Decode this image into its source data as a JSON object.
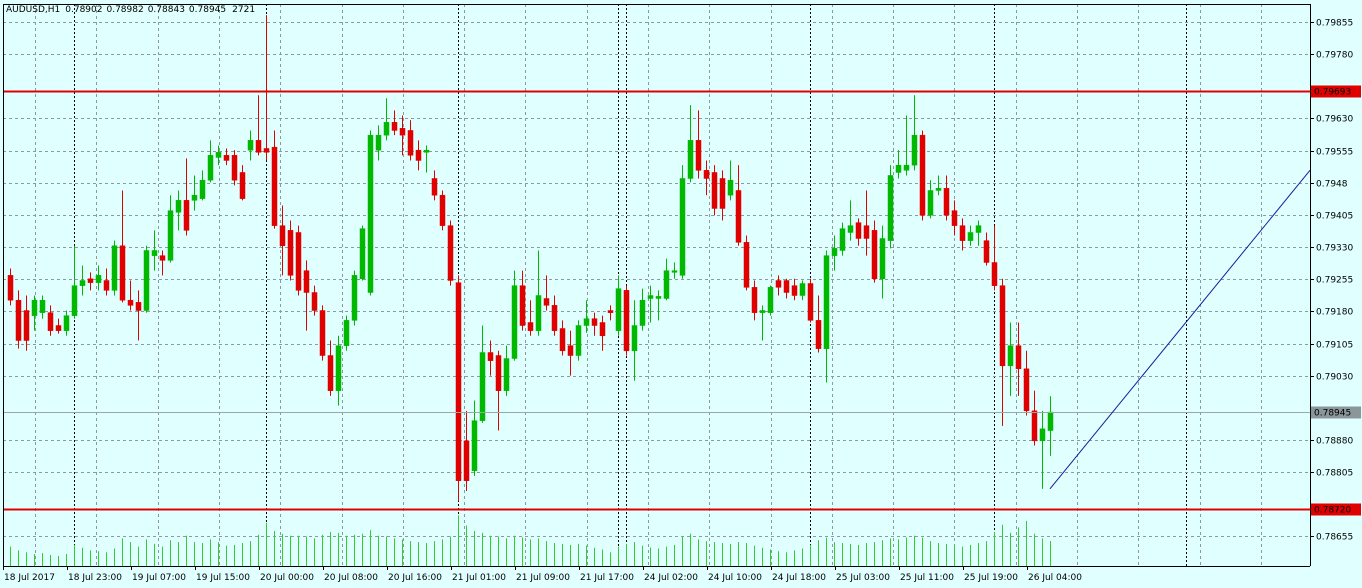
{
  "chart_data": {
    "type": "candlestick",
    "title": "AUDUSD,H1",
    "categories": [
      "18 Jul 2017",
      null,
      null,
      null,
      null,
      null,
      null,
      null,
      "18 Jul 23:00",
      null,
      null,
      null,
      null,
      null,
      null,
      null,
      "19 Jul 07:00",
      null,
      null,
      null,
      null,
      null,
      null,
      null,
      "19 Jul 15:00",
      null,
      null,
      null,
      null,
      null,
      null,
      null,
      "20 Jul 00:00",
      null,
      null,
      null,
      null,
      null,
      null,
      null,
      "20 Jul 08:00",
      null,
      null,
      null,
      null,
      null,
      null,
      null,
      "20 Jul 16:00",
      null,
      null,
      null,
      null,
      null,
      null,
      null,
      "21 Jul 01:00",
      null,
      null,
      null,
      null,
      null,
      null,
      null,
      "21 Jul 09:00",
      null,
      null,
      null,
      null,
      null,
      null,
      null,
      "21 Jul 17:00",
      null,
      null,
      null,
      null,
      null,
      null,
      null,
      "24 Jul 02:00",
      null,
      null,
      null,
      null,
      null,
      null,
      null,
      "24 Jul 10:00",
      null,
      null,
      null,
      null,
      null,
      null,
      null,
      "24 Jul 18:00",
      null,
      null,
      null,
      null,
      null,
      null,
      null,
      "25 Jul 03:00",
      null,
      null,
      null,
      null,
      null,
      null,
      null,
      "25 Jul 11:00",
      null,
      null,
      null,
      null,
      null,
      null,
      null,
      "25 Jul 19:00",
      null,
      null,
      null,
      null,
      null,
      null,
      null,
      "26 Jul 04:00",
      null,
      null
    ],
    "open": [
      0.79264,
      0.79206,
      0.79182,
      0.7917,
      0.79177,
      0.79177,
      0.79147,
      0.79135,
      0.7917,
      0.7924,
      0.79256,
      0.79247,
      0.79252,
      0.79229,
      0.79333,
      0.79206,
      0.79201,
      0.79182,
      0.7931,
      0.7931,
      0.79299,
      0.79411,
      0.79439,
      0.79439,
      0.79443,
      0.79486,
      0.79539,
      0.79544,
      0.79544,
      0.79504,
      0.79556,
      0.79579,
      0.7956,
      0.79563,
      0.7938,
      0.79369,
      0.79364,
      0.79275,
      0.79224,
      0.79182,
      0.79077,
      0.78995,
      0.791,
      0.79159,
      0.79256,
      0.79224,
      0.79556,
      0.79591,
      0.79621,
      0.79607,
      0.79602,
      0.79556,
      0.79551,
      0.7949,
      0.79451,
      0.7938,
      0.79247,
      0.78878,
      0.78808,
      0.78925,
      0.79084,
      0.79077,
      0.78995,
      0.7907,
      0.7924,
      0.79154,
      0.79135,
      0.7921,
      0.79194,
      0.7914,
      0.791,
      0.79077,
      0.79147,
      0.79163,
      0.79154,
      0.79182,
      0.79135,
      0.79229,
      0.79088,
      0.79147,
      0.7921,
      0.7921,
      0.7921,
      0.79271,
      0.79264,
      0.7949,
      0.79579,
      0.79509,
      0.79504,
      0.7949,
      0.79451,
      0.79462,
      0.79341,
      0.79236,
      0.79177,
      0.79177,
      0.79252,
      0.79252,
      0.7924,
      0.79217,
      0.79245,
      0.79159,
      0.79093,
      0.7931,
      0.79322,
      0.79364,
      0.79387,
      0.7938,
      0.79369,
      0.79256,
      0.79345,
      0.79504,
      0.79509,
      0.79521,
      0.79591,
      0.79404,
      0.79462,
      0.79467,
      0.79415,
      0.7938,
      0.79345,
      0.79364,
      0.79345,
      0.79294,
      0.7924,
      0.79053,
      0.791,
      0.79046,
      0.78948,
      0.78878,
      0.78902
    ],
    "high": [
      0.7928,
      0.79229,
      0.79217,
      0.79217,
      0.79217,
      0.79194,
      0.79163,
      0.79182,
      0.79333,
      0.79287,
      0.79271,
      0.79287,
      0.7928,
      0.79345,
      0.79462,
      0.79252,
      0.79229,
      0.79333,
      0.79369,
      0.79322,
      0.79451,
      0.79462,
      0.79537,
      0.79497,
      0.79509,
      0.79579,
      0.79567,
      0.7956,
      0.79556,
      0.79521,
      0.79602,
      0.79684,
      0.79871,
      0.79602,
      0.79427,
      0.79392,
      0.7938,
      0.79299,
      0.7924,
      0.79194,
      0.79112,
      0.79123,
      0.7917,
      0.79275,
      0.7938,
      0.79602,
      0.79614,
      0.79677,
      0.79649,
      0.79637,
      0.79626,
      0.79579,
      0.79567,
      0.79509,
      0.79462,
      0.79392,
      0.79264,
      0.78948,
      0.78972,
      0.79147,
      0.79112,
      0.79088,
      0.791,
      0.79275,
      0.79275,
      0.79206,
      0.79322,
      0.79264,
      0.79217,
      0.79159,
      0.79135,
      0.79159,
      0.79206,
      0.79177,
      0.7917,
      0.79194,
      0.79264,
      0.7924,
      0.79206,
      0.79233,
      0.7924,
      0.79229,
      0.79303,
      0.79294,
      0.79521,
      0.79661,
      0.79649,
      0.79532,
      0.79521,
      0.79509,
      0.79532,
      0.79521,
      0.79357,
      0.79252,
      0.79194,
      0.7924,
      0.79264,
      0.79256,
      0.79256,
      0.79252,
      0.79256,
      0.79217,
      0.79322,
      0.79357,
      0.79387,
      0.79439,
      0.79397,
      0.79462,
      0.79392,
      0.7938,
      0.79521,
      0.79556,
      0.79637,
      0.79684,
      0.79602,
      0.79486,
      0.79497,
      0.79497,
      0.79439,
      0.79397,
      0.7938,
      0.79392,
      0.79364,
      0.7938,
      0.79256,
      0.79154,
      0.79154,
      0.79088,
      0.78995,
      0.78948,
      0.78982
    ],
    "low": [
      0.79194,
      0.79093,
      0.79088,
      0.79135,
      0.79163,
      0.79123,
      0.79128,
      0.79123,
      0.79163,
      0.79217,
      0.79229,
      0.79229,
      0.79217,
      0.79217,
      0.79201,
      0.79182,
      0.79112,
      0.79177,
      0.79275,
      0.79264,
      0.79294,
      0.79369,
      0.79357,
      0.79415,
      0.79439,
      0.79481,
      0.79521,
      0.79521,
      0.79474,
      0.79439,
      0.79532,
      0.79544,
      0.79532,
      0.79373,
      0.79264,
      0.79252,
      0.79217,
      0.79135,
      0.7917,
      0.79065,
      0.78983,
      0.7896,
      0.79088,
      0.79147,
      0.79252,
      0.79217,
      0.79532,
      0.79579,
      0.79591,
      0.79544,
      0.79532,
      0.79509,
      0.79504,
      0.79439,
      0.79369,
      0.7924,
      0.78738,
      0.78761,
      0.78796,
      0.7892,
      0.7903,
      0.78902,
      0.78983,
      0.79065,
      0.79135,
      0.79123,
      0.79123,
      0.79182,
      0.79123,
      0.79077,
      0.7903,
      0.79065,
      0.7913,
      0.79123,
      0.79088,
      0.79159,
      0.79123,
      0.79077,
      0.79018,
      0.79135,
      0.79154,
      0.79159,
      0.79206,
      0.79256,
      0.79256,
      0.79481,
      0.7949,
      0.79451,
      0.79404,
      0.79392,
      0.79439,
      0.79333,
      0.79229,
      0.79159,
      0.79112,
      0.7917,
      0.79217,
      0.7921,
      0.79206,
      0.79206,
      0.79154,
      0.79084,
      0.79014,
      0.79275,
      0.7931,
      0.79345,
      0.79333,
      0.7931,
      0.79247,
      0.7921,
      0.79327,
      0.7949,
      0.79497,
      0.79509,
      0.79392,
      0.79397,
      0.79451,
      0.79392,
      0.79357,
      0.79322,
      0.79333,
      0.79333,
      0.79287,
      0.79229,
      0.78913,
      0.78983,
      0.78983,
      0.78937,
      0.78867,
      0.78766,
      0.78843
    ],
    "close": [
      0.79206,
      0.79112,
      0.79112,
      0.79206,
      0.79206,
      0.79135,
      0.79135,
      0.7917,
      0.7924,
      0.79252,
      0.79247,
      0.79264,
      0.79229,
      0.79333,
      0.79206,
      0.79194,
      0.79182,
      0.79322,
      0.79322,
      0.79299,
      0.79415,
      0.79439,
      0.79369,
      0.79451,
      0.79486,
      0.79544,
      0.79551,
      0.79532,
      0.79486,
      0.79443,
      0.79579,
      0.79551,
      0.79551,
      0.7938,
      0.79333,
      0.79264,
      0.79229,
      0.79224,
      0.79182,
      0.79077,
      0.78995,
      0.791,
      0.79159,
      0.79264,
      0.79373,
      0.79591,
      0.79591,
      0.79621,
      0.79602,
      0.79591,
      0.79544,
      0.79532,
      0.79556,
      0.79451,
      0.7938,
      0.79252,
      0.78785,
      0.78785,
      0.78925,
      0.79084,
      0.79065,
      0.78995,
      0.7907,
      0.7924,
      0.79147,
      0.79135,
      0.79217,
      0.79194,
      0.79135,
      0.79088,
      0.79077,
      0.79147,
      0.79163,
      0.79147,
      0.79123,
      0.79177,
      0.79233,
      0.79088,
      0.79147,
      0.79206,
      0.79217,
      0.79215,
      0.79275,
      0.79275,
      0.7949,
      0.79579,
      0.79509,
      0.7949,
      0.7942,
      0.7942,
      0.79486,
      0.79341,
      0.79236,
      0.79177,
      0.79182,
      0.79236,
      0.79236,
      0.79224,
      0.79217,
      0.79245,
      0.79159,
      0.79093,
      0.7931,
      0.79327,
      0.79373,
      0.7938,
      0.7935,
      0.7935,
      0.79256,
      0.7935,
      0.79497,
      0.79521,
      0.79521,
      0.79591,
      0.79404,
      0.79462,
      0.79467,
      0.79404,
      0.7938,
      0.79345,
      0.79364,
      0.7938,
      0.79294,
      0.7924,
      0.79053,
      0.791,
      0.79046,
      0.78948,
      0.78878,
      0.78906,
      0.78945
    ],
    "volume": [
      2100,
      1700,
      1500,
      1300,
      1400,
      1200,
      1100,
      1300,
      2300,
      2000,
      1700,
      1600,
      1500,
      1900,
      3000,
      2600,
      2100,
      2900,
      2400,
      2100,
      2800,
      2600,
      3300,
      2600,
      2500,
      2900,
      2600,
      2200,
      2300,
      2500,
      2700,
      3400,
      4700,
      3800,
      3500,
      3300,
      3300,
      3200,
      3000,
      3400,
      3700,
      3600,
      3300,
      3400,
      3500,
      3900,
      3300,
      3200,
      3000,
      2900,
      2700,
      2600,
      2500,
      2700,
      2900,
      3200,
      5500,
      4400,
      3800,
      3600,
      3300,
      3200,
      3000,
      3300,
      3100,
      2900,
      3000,
      2700,
      2500,
      2400,
      2300,
      2400,
      2200,
      2000,
      1800,
      1500,
      2100,
      2400,
      2600,
      2200,
      2000,
      1900,
      2100,
      2300,
      3200,
      3500,
      2900,
      2700,
      2600,
      2500,
      2400,
      2600,
      2500,
      2200,
      2000,
      1800,
      1600,
      1500,
      1700,
      1900,
      2300,
      2800,
      3100,
      2600,
      2500,
      2400,
      2300,
      2500,
      2600,
      2800,
      3000,
      2900,
      3100,
      3300,
      3100,
      2700,
      2500,
      2400,
      2200,
      2100,
      2300,
      2500,
      2700,
      3700,
      4500,
      3600,
      4200,
      4900,
      3500,
      3000,
      2721
    ],
    "colors": {
      "up": "#00b800",
      "down": "#e00000",
      "volume": "#33cc33"
    },
    "ylim": [
      0.78586,
      0.79897
    ],
    "yticks": [
      0.79855,
      {
        "value": 0.7978,
        "label": "0.79780"
      },
      {
        "value": 0.7963,
        "label": "0.79630"
      },
      0.79555,
      0.7948,
      0.79405,
      {
        "value": 0.7933,
        "label": "0.79330"
      },
      0.79255,
      {
        "value": 0.7918,
        "label": "0.79180"
      },
      0.79105,
      {
        "value": 0.7903,
        "label": "0.79030"
      },
      {
        "value": 0.7888,
        "label": "0.78880"
      },
      0.78805,
      0.78655
    ],
    "grid": true,
    "levels": [
      {
        "value": 0.79693,
        "color": "#e00000"
      },
      {
        "value": 0.7872,
        "label": "0.78720",
        "color": "#e00000"
      }
    ],
    "trendline": {
      "x": [
        130,
        162.5
      ],
      "values": [
        0.78766,
        0.79509
      ],
      "color": "#1a1aa0"
    }
  }
}
